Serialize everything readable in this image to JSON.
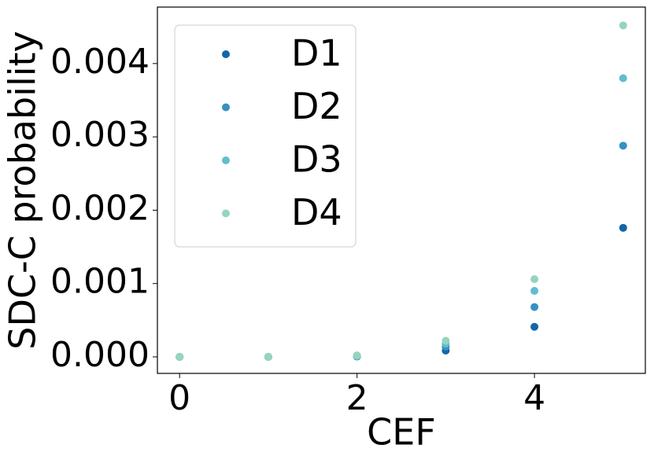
{
  "chart_data": {
    "type": "scatter",
    "x_label": "CEF",
    "y_label": "SDC-C probability",
    "x": [
      0,
      1,
      2,
      3,
      4,
      5
    ],
    "series": [
      {
        "name": "D1",
        "color": "#1266a8",
        "values": [
          0,
          0,
          5e-06,
          8.6e-05,
          0.00041,
          0.00176
        ]
      },
      {
        "name": "D2",
        "color": "#3591c3",
        "values": [
          0,
          0,
          1e-05,
          0.00014,
          0.00068,
          0.00288
        ]
      },
      {
        "name": "D3",
        "color": "#63bccf",
        "values": [
          0,
          0,
          1e-05,
          0.00018,
          0.0009,
          0.0038
        ]
      },
      {
        "name": "D4",
        "color": "#95d5bd",
        "values": [
          0,
          0,
          2e-05,
          0.00022,
          0.00106,
          0.00452
        ]
      }
    ],
    "xlim": [
      -0.25,
      5.25
    ],
    "xticks": [
      0,
      2,
      4
    ],
    "ylim": [
      -0.000225,
      0.00477
    ],
    "yticks": [
      {
        "value": 0,
        "label": "0.000"
      },
      {
        "value": 0.001,
        "label": "0.001"
      },
      {
        "value": 0.002,
        "label": "0.002"
      },
      {
        "value": 0.003,
        "label": "0.003"
      },
      {
        "value": 0.004,
        "label": "0.004"
      }
    ],
    "legend": "upper left",
    "grid": false
  }
}
